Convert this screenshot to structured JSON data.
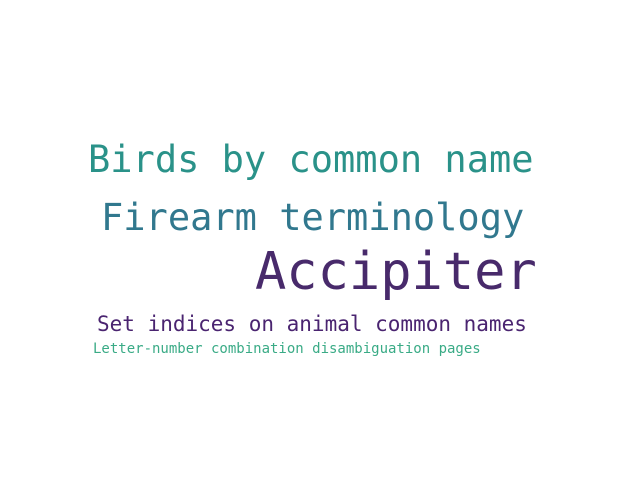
{
  "words": [
    {
      "text": "Birds by common name",
      "color": "#2a9289"
    },
    {
      "text": "Firearm terminology",
      "color": "#31788e"
    },
    {
      "text": "Accipiter",
      "color": "#482a6b"
    },
    {
      "text": "Set indices on animal common names",
      "color": "#4a2470"
    },
    {
      "text": "Letter-number combination disambiguation pages",
      "color": "#3aab86"
    }
  ]
}
